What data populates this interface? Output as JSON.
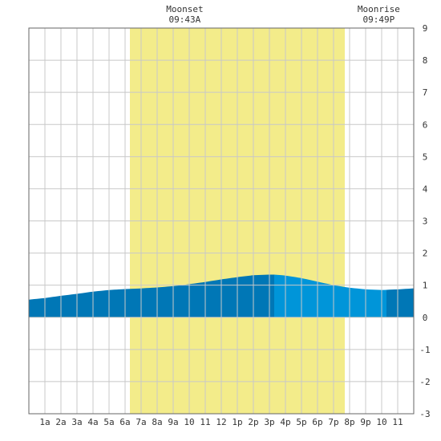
{
  "chart_data": {
    "type": "area",
    "title": "",
    "xlabel": "",
    "ylabel": "",
    "ylim": [
      -3,
      9
    ],
    "xlim": [
      0,
      24
    ],
    "grid": true,
    "y_ticks": [
      -3,
      -2,
      -1,
      0,
      1,
      2,
      3,
      4,
      5,
      6,
      7,
      8,
      9
    ],
    "x_tick_labels": [
      "1a",
      "2a",
      "3a",
      "4a",
      "5a",
      "6a",
      "7a",
      "8a",
      "9a",
      "10",
      "11",
      "12",
      "1p",
      "2p",
      "3p",
      "4p",
      "5p",
      "6p",
      "7p",
      "8p",
      "9p",
      "10",
      "11"
    ],
    "daylight": {
      "start_hour": 6.3,
      "end_hour": 19.7,
      "color": "#f3ec8a"
    },
    "moon_events": [
      {
        "name": "Moonset",
        "time": "09:43A",
        "hour": 9.72
      },
      {
        "name": "Moonrise",
        "time": "09:49P",
        "hour": 21.82
      }
    ],
    "series": [
      {
        "x": [
          0,
          1,
          2,
          3,
          4,
          5,
          6,
          7,
          8,
          9,
          10,
          11,
          12,
          13,
          14,
          15,
          15.3,
          16,
          17,
          18,
          19,
          20,
          21,
          22,
          23,
          24
        ],
        "values": [
          0.55,
          0.6,
          0.67,
          0.73,
          0.8,
          0.85,
          0.88,
          0.9,
          0.93,
          0.97,
          1.03,
          1.1,
          1.18,
          1.25,
          1.31,
          1.33,
          1.33,
          1.3,
          1.22,
          1.11,
          1.0,
          0.92,
          0.87,
          0.85,
          0.87,
          0.9
        ]
      }
    ],
    "segments": [
      {
        "start": 0,
        "end": 15.3,
        "color": "#0077b6"
      },
      {
        "start": 15.3,
        "end": 22.3,
        "color": "#0095d9"
      },
      {
        "start": 22.3,
        "end": 24,
        "color": "#0077b6"
      }
    ],
    "colors": {
      "grid": "#c8c8c8",
      "frame": "#666666",
      "tide_falling": "#0077b6",
      "tide_rising": "#0095d9"
    }
  }
}
